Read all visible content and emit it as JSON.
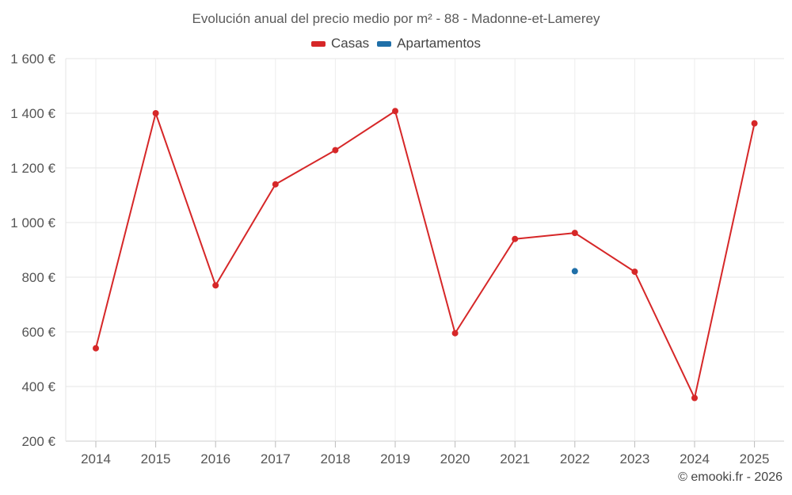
{
  "chart_data": {
    "type": "line",
    "title": "Evolución anual del precio medio por m² - 88 - Madonne-et-Lamerey",
    "categories": [
      "2014",
      "2015",
      "2016",
      "2017",
      "2018",
      "2019",
      "2020",
      "2021",
      "2022",
      "2023",
      "2024",
      "2025"
    ],
    "ylim": [
      200,
      1600
    ],
    "yticks": [
      200,
      400,
      600,
      800,
      1000,
      1200,
      1400,
      1600
    ],
    "y_tick_labels": [
      "200 €",
      "400 €",
      "600 €",
      "800 €",
      "1 000 €",
      "1 200 €",
      "1 400 €",
      "1 600 €"
    ],
    "xlabel": "",
    "ylabel": "",
    "grid": true,
    "legend_position": "top-center",
    "series": [
      {
        "name": "Casas",
        "color": "#d62728",
        "values": [
          540,
          1400,
          770,
          1140,
          1265,
          1408,
          595,
          940,
          962,
          820,
          358,
          1363
        ]
      },
      {
        "name": "Apartamentos",
        "color": "#1f6fa8",
        "values": [
          null,
          null,
          null,
          null,
          null,
          null,
          null,
          null,
          822,
          null,
          null,
          null
        ]
      }
    ]
  },
  "credit": "© emooki.fr - 2026"
}
